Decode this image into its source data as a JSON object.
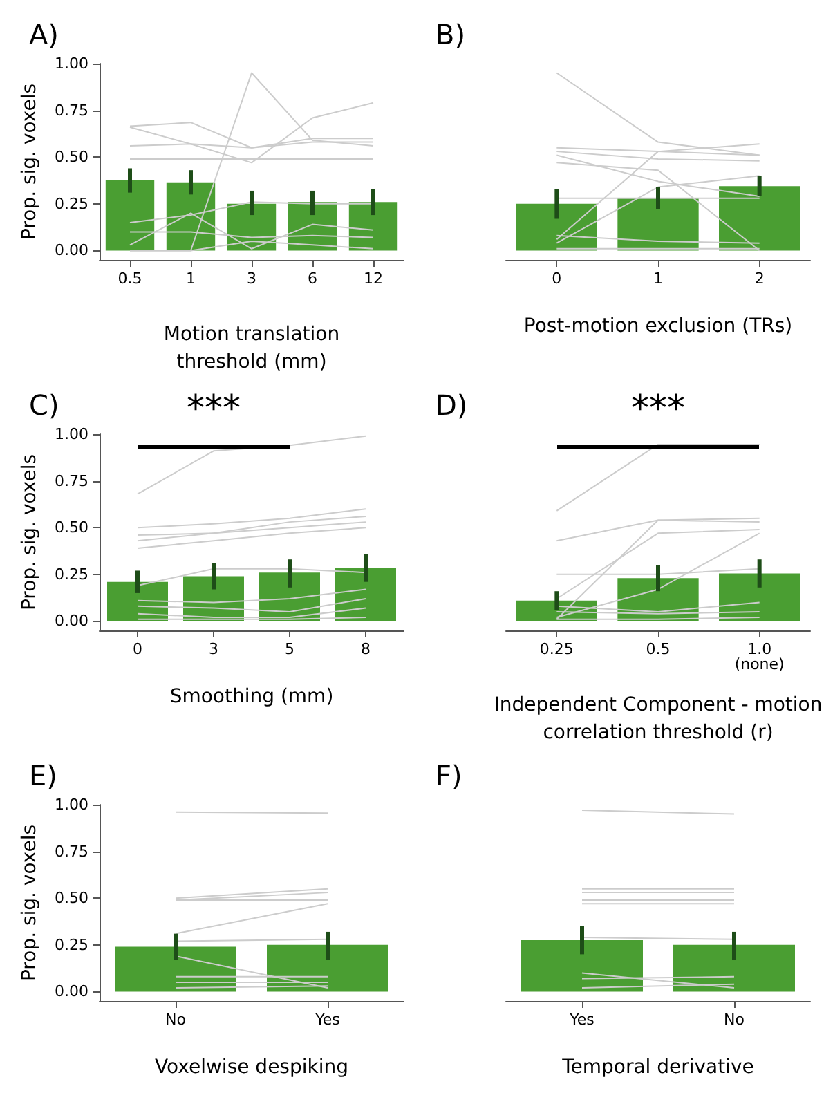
{
  "chart_data": [
    {
      "type": "bar",
      "title": "A)",
      "xlabel": "Motion translation\nthreshold (mm)",
      "ylabel": "Prop. sig. voxels",
      "categories": [
        "0.5",
        "1",
        "3",
        "6",
        "12"
      ],
      "ylim": [
        -0.05,
        1.0
      ],
      "yticks": [
        {
          "value": 0,
          "label": "0.00"
        },
        {
          "value": 0.25,
          "label": "0.25"
        },
        {
          "value": 0.5,
          "label": "0.50"
        },
        {
          "value": 0.75,
          "label": "0.75"
        },
        {
          "value": 1,
          "label": "1.00"
        }
      ],
      "grid": false,
      "marker": "none",
      "series": [
        {
          "type": "bar",
          "color": "#4a9e32",
          "values": [
            0.375,
            0.365,
            0.25,
            0.26,
            0.26
          ],
          "errors": [
            [
              0.31,
              0.44
            ],
            [
              0.3,
              0.43
            ],
            [
              0.19,
              0.32
            ],
            [
              0.19,
              0.32
            ],
            [
              0.19,
              0.33
            ]
          ]
        },
        {
          "type": "line",
          "color": "#cccccc",
          "values": [
            0.665,
            0.685,
            0.55,
            0.58,
            0.58
          ]
        },
        {
          "type": "line",
          "color": "#cccccc",
          "values": [
            0.66,
            0.57,
            0.47,
            0.71,
            0.79
          ]
        },
        {
          "type": "line",
          "color": "#cccccc",
          "values": [
            0.56,
            0.57,
            0.55,
            0.6,
            0.6
          ]
        },
        {
          "type": "line",
          "color": "#cccccc",
          "values": [
            0.49,
            0.49,
            0.49,
            0.49,
            0.49
          ]
        },
        {
          "type": "line",
          "color": "#cccccc",
          "values": [
            0.0,
            0.0,
            0.95,
            0.59,
            0.56
          ]
        },
        {
          "type": "line",
          "color": "#cccccc",
          "values": [
            0.15,
            0.19,
            0.26,
            0.25,
            0.25
          ]
        },
        {
          "type": "line",
          "color": "#cccccc",
          "values": [
            0.03,
            0.2,
            0.01,
            0.14,
            0.11
          ]
        },
        {
          "type": "line",
          "color": "#cccccc",
          "values": [
            0.1,
            0.1,
            0.07,
            0.08,
            0.07
          ]
        },
        {
          "type": "line",
          "color": "#cccccc",
          "values": [
            0.0,
            0.0,
            0.05,
            0.03,
            0.01
          ]
        }
      ]
    },
    {
      "type": "bar",
      "title": "B)",
      "xlabel": "Post-motion exclusion (TRs)",
      "categories": [
        "0",
        "1",
        "2"
      ],
      "ylim": [
        -0.05,
        1.0
      ],
      "tick_labels": "x",
      "grid": false,
      "marker": "none",
      "series": [
        {
          "type": "bar",
          "color": "#4a9e32",
          "values": [
            0.25,
            0.28,
            0.345
          ],
          "errors": [
            [
              0.17,
              0.33
            ],
            [
              0.22,
              0.34
            ],
            [
              0.29,
              0.4
            ]
          ]
        },
        {
          "type": "line",
          "color": "#cccccc",
          "values": [
            0.95,
            0.58,
            0.51
          ]
        },
        {
          "type": "line",
          "color": "#cccccc",
          "values": [
            0.55,
            0.53,
            0.51
          ]
        },
        {
          "type": "line",
          "color": "#cccccc",
          "values": [
            0.53,
            0.49,
            0.48
          ]
        },
        {
          "type": "line",
          "color": "#cccccc",
          "values": [
            0.51,
            0.37,
            0.29
          ]
        },
        {
          "type": "line",
          "color": "#cccccc",
          "values": [
            0.47,
            0.43,
            0.0
          ]
        },
        {
          "type": "line",
          "color": "#cccccc",
          "values": [
            0.06,
            0.53,
            0.57
          ]
        },
        {
          "type": "line",
          "color": "#cccccc",
          "values": [
            0.04,
            0.34,
            0.4
          ]
        },
        {
          "type": "line",
          "color": "#cccccc",
          "values": [
            0.28,
            0.28,
            0.28
          ]
        },
        {
          "type": "line",
          "color": "#cccccc",
          "values": [
            0.08,
            0.05,
            0.04
          ]
        },
        {
          "type": "line",
          "color": "#cccccc",
          "values": [
            0.01,
            0.01,
            0.01
          ]
        }
      ]
    },
    {
      "type": "bar",
      "title": "C)",
      "xlabel": "Smoothing (mm)",
      "ylabel": "Prop. sig. voxels",
      "categories": [
        "0",
        "3",
        "5",
        "8"
      ],
      "ylim": [
        -0.05,
        1.0
      ],
      "yticks": [
        {
          "value": 0,
          "label": "0.00"
        },
        {
          "value": 0.25,
          "label": "0.25"
        },
        {
          "value": 0.5,
          "label": "0.50"
        },
        {
          "value": 0.75,
          "label": "0.75"
        },
        {
          "value": 1,
          "label": "1.00"
        }
      ],
      "grid": false,
      "marker": "none",
      "annotations": [
        "***"
      ],
      "series": [
        {
          "type": "bar",
          "color": "#4a9e32",
          "values": [
            0.21,
            0.24,
            0.26,
            0.285
          ],
          "errors": [
            [
              0.15,
              0.27
            ],
            [
              0.17,
              0.31
            ],
            [
              0.18,
              0.33
            ],
            [
              0.21,
              0.36
            ]
          ]
        },
        {
          "type": "line",
          "color": "#cccccc",
          "values": [
            0.68,
            0.91,
            0.94,
            0.99
          ]
        },
        {
          "type": "line",
          "color": "#cccccc",
          "values": [
            0.5,
            0.52,
            0.55,
            0.6
          ]
        },
        {
          "type": "line",
          "color": "#cccccc",
          "values": [
            0.46,
            0.47,
            0.53,
            0.56
          ]
        },
        {
          "type": "line",
          "color": "#cccccc",
          "values": [
            0.43,
            0.47,
            0.5,
            0.53
          ]
        },
        {
          "type": "line",
          "color": "#cccccc",
          "values": [
            0.39,
            0.43,
            0.47,
            0.5
          ]
        },
        {
          "type": "line",
          "color": "#cccccc",
          "values": [
            0.19,
            0.28,
            0.28,
            0.26
          ]
        },
        {
          "type": "line",
          "color": "#cccccc",
          "values": [
            0.11,
            0.1,
            0.12,
            0.17
          ]
        },
        {
          "type": "line",
          "color": "#cccccc",
          "values": [
            0.08,
            0.07,
            0.05,
            0.12
          ]
        },
        {
          "type": "line",
          "color": "#cccccc",
          "values": [
            0.04,
            0.02,
            0.02,
            0.07
          ]
        },
        {
          "type": "line",
          "color": "#cccccc",
          "values": [
            0.01,
            0.01,
            0.01,
            0.02
          ]
        }
      ]
    },
    {
      "type": "bar",
      "title": "D)",
      "xlabel": "Independent Component - motion\ncorrelation threshold (r)",
      "categories": [
        "0.25",
        "0.5",
        "1.0\n(none)"
      ],
      "ylim": [
        -0.05,
        1.0
      ],
      "tick_labels": "x",
      "grid": false,
      "marker": "none",
      "annotations": [
        "***"
      ],
      "series": [
        {
          "type": "bar",
          "color": "#4a9e32",
          "values": [
            0.11,
            0.23,
            0.255
          ],
          "errors": [
            [
              0.06,
              0.16
            ],
            [
              0.16,
              0.3
            ],
            [
              0.18,
              0.33
            ]
          ]
        },
        {
          "type": "line",
          "color": "#cccccc",
          "values": [
            0.59,
            0.945,
            0.945
          ]
        },
        {
          "type": "line",
          "color": "#cccccc",
          "values": [
            0.43,
            0.54,
            0.55
          ]
        },
        {
          "type": "line",
          "color": "#cccccc",
          "values": [
            0.25,
            0.25,
            0.28
          ]
        },
        {
          "type": "line",
          "color": "#cccccc",
          "values": [
            0.12,
            0.47,
            0.49
          ]
        },
        {
          "type": "line",
          "color": "#cccccc",
          "values": [
            0.01,
            0.54,
            0.53
          ]
        },
        {
          "type": "line",
          "color": "#cccccc",
          "values": [
            0.02,
            0.17,
            0.47
          ]
        },
        {
          "type": "line",
          "color": "#cccccc",
          "values": [
            0.08,
            0.05,
            0.1
          ]
        },
        {
          "type": "line",
          "color": "#cccccc",
          "values": [
            0.05,
            0.04,
            0.05
          ]
        },
        {
          "type": "line",
          "color": "#cccccc",
          "values": [
            0.01,
            0.01,
            0.02
          ]
        }
      ]
    },
    {
      "type": "bar",
      "title": "E)",
      "xlabel": "Voxelwise despiking",
      "ylabel": "Prop. sig. voxels",
      "categories": [
        "No",
        "Yes"
      ],
      "ylim": [
        -0.05,
        1.0
      ],
      "yticks": [
        {
          "value": 0,
          "label": "0.00"
        },
        {
          "value": 0.25,
          "label": "0.25"
        },
        {
          "value": 0.5,
          "label": "0.50"
        },
        {
          "value": 0.75,
          "label": "0.75"
        },
        {
          "value": 1,
          "label": "1.00"
        }
      ],
      "grid": false,
      "marker": "none",
      "series": [
        {
          "type": "bar",
          "color": "#4a9e32",
          "values": [
            0.24,
            0.25
          ],
          "errors": [
            [
              0.17,
              0.31
            ],
            [
              0.17,
              0.32
            ]
          ]
        },
        {
          "type": "line",
          "color": "#cccccc",
          "values": [
            0.96,
            0.955
          ]
        },
        {
          "type": "line",
          "color": "#cccccc",
          "values": [
            0.5,
            0.55
          ]
        },
        {
          "type": "line",
          "color": "#cccccc",
          "values": [
            0.49,
            0.53
          ]
        },
        {
          "type": "line",
          "color": "#cccccc",
          "values": [
            0.49,
            0.49
          ]
        },
        {
          "type": "line",
          "color": "#cccccc",
          "values": [
            0.31,
            0.47
          ]
        },
        {
          "type": "line",
          "color": "#cccccc",
          "values": [
            0.27,
            0.28
          ]
        },
        {
          "type": "line",
          "color": "#cccccc",
          "values": [
            0.19,
            0.02
          ]
        },
        {
          "type": "line",
          "color": "#cccccc",
          "values": [
            0.08,
            0.08
          ]
        },
        {
          "type": "line",
          "color": "#cccccc",
          "values": [
            0.05,
            0.05
          ]
        },
        {
          "type": "line",
          "color": "#cccccc",
          "values": [
            0.02,
            0.03
          ]
        }
      ]
    },
    {
      "type": "bar",
      "title": "F)",
      "xlabel": "Temporal derivative",
      "categories": [
        "Yes",
        "No"
      ],
      "ylim": [
        -0.05,
        1.0
      ],
      "tick_labels": "x",
      "grid": false,
      "marker": "none",
      "series": [
        {
          "type": "bar",
          "color": "#4a9e32",
          "values": [
            0.275,
            0.25
          ],
          "errors": [
            [
              0.2,
              0.35
            ],
            [
              0.17,
              0.32
            ]
          ]
        },
        {
          "type": "line",
          "color": "#cccccc",
          "values": [
            0.97,
            0.95
          ]
        },
        {
          "type": "line",
          "color": "#cccccc",
          "values": [
            0.55,
            0.55
          ]
        },
        {
          "type": "line",
          "color": "#cccccc",
          "values": [
            0.53,
            0.53
          ]
        },
        {
          "type": "line",
          "color": "#cccccc",
          "values": [
            0.49,
            0.49
          ]
        },
        {
          "type": "line",
          "color": "#cccccc",
          "values": [
            0.47,
            0.47
          ]
        },
        {
          "type": "line",
          "color": "#cccccc",
          "values": [
            0.29,
            0.28
          ]
        },
        {
          "type": "line",
          "color": "#cccccc",
          "values": [
            0.1,
            0.02
          ]
        },
        {
          "type": "line",
          "color": "#cccccc",
          "values": [
            0.07,
            0.08
          ]
        },
        {
          "type": "line",
          "color": "#cccccc",
          "values": [
            0.02,
            0.04
          ]
        }
      ]
    }
  ]
}
